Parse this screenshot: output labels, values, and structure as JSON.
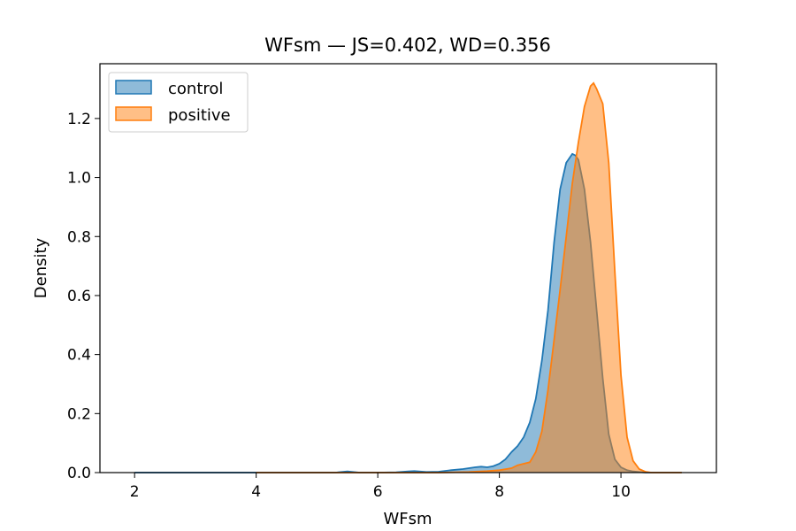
{
  "chart_data": {
    "type": "area",
    "title": "WFsm — JS=0.402, WD=0.356",
    "xlabel": "WFsm",
    "ylabel": "Density",
    "xlim": [
      1.43,
      11.57
    ],
    "ylim": [
      0,
      1.3856
    ],
    "x_ticks": [
      2,
      4,
      6,
      8,
      10
    ],
    "y_ticks": [
      0.0,
      0.2,
      0.4,
      0.6,
      0.8,
      1.0,
      1.2
    ],
    "grid": false,
    "legend_position": "top-left",
    "series": [
      {
        "name": "control",
        "color": "#1f77b4",
        "x": [
          2.0,
          3.0,
          4.0,
          5.0,
          5.3,
          5.5,
          5.7,
          6.0,
          6.3,
          6.5,
          6.6,
          6.8,
          7.0,
          7.2,
          7.4,
          7.6,
          7.7,
          7.8,
          7.9,
          8.0,
          8.1,
          8.2,
          8.3,
          8.4,
          8.5,
          8.6,
          8.7,
          8.8,
          8.9,
          9.0,
          9.1,
          9.2,
          9.25,
          9.3,
          9.4,
          9.5,
          9.6,
          9.7,
          9.8,
          9.9,
          10.0,
          10.1,
          10.2,
          10.4,
          10.6,
          11.0
        ],
        "y": [
          0.0,
          0.0,
          0.0,
          0.0,
          0.0,
          0.004,
          0.0,
          0.0,
          0.001,
          0.004,
          0.005,
          0.002,
          0.003,
          0.008,
          0.012,
          0.018,
          0.02,
          0.018,
          0.022,
          0.03,
          0.045,
          0.07,
          0.09,
          0.12,
          0.17,
          0.25,
          0.38,
          0.55,
          0.78,
          0.96,
          1.05,
          1.08,
          1.075,
          1.06,
          0.96,
          0.78,
          0.55,
          0.32,
          0.13,
          0.045,
          0.018,
          0.008,
          0.004,
          0.0,
          0.0,
          0.0
        ]
      },
      {
        "name": "positive",
        "color": "#ff7f0e",
        "x": [
          4.0,
          5.0,
          6.0,
          7.0,
          7.5,
          7.8,
          8.0,
          8.2,
          8.3,
          8.4,
          8.5,
          8.6,
          8.7,
          8.8,
          8.9,
          9.0,
          9.1,
          9.2,
          9.3,
          9.4,
          9.5,
          9.55,
          9.6,
          9.7,
          9.8,
          9.9,
          10.0,
          10.1,
          10.2,
          10.3,
          10.4,
          10.5,
          11.0
        ],
        "y": [
          0.0,
          0.0,
          0.0,
          0.0,
          0.002,
          0.005,
          0.008,
          0.015,
          0.025,
          0.03,
          0.035,
          0.07,
          0.14,
          0.28,
          0.45,
          0.62,
          0.8,
          0.98,
          1.12,
          1.24,
          1.31,
          1.32,
          1.3,
          1.25,
          1.05,
          0.68,
          0.33,
          0.12,
          0.04,
          0.012,
          0.003,
          0.0,
          0.0
        ]
      }
    ]
  }
}
